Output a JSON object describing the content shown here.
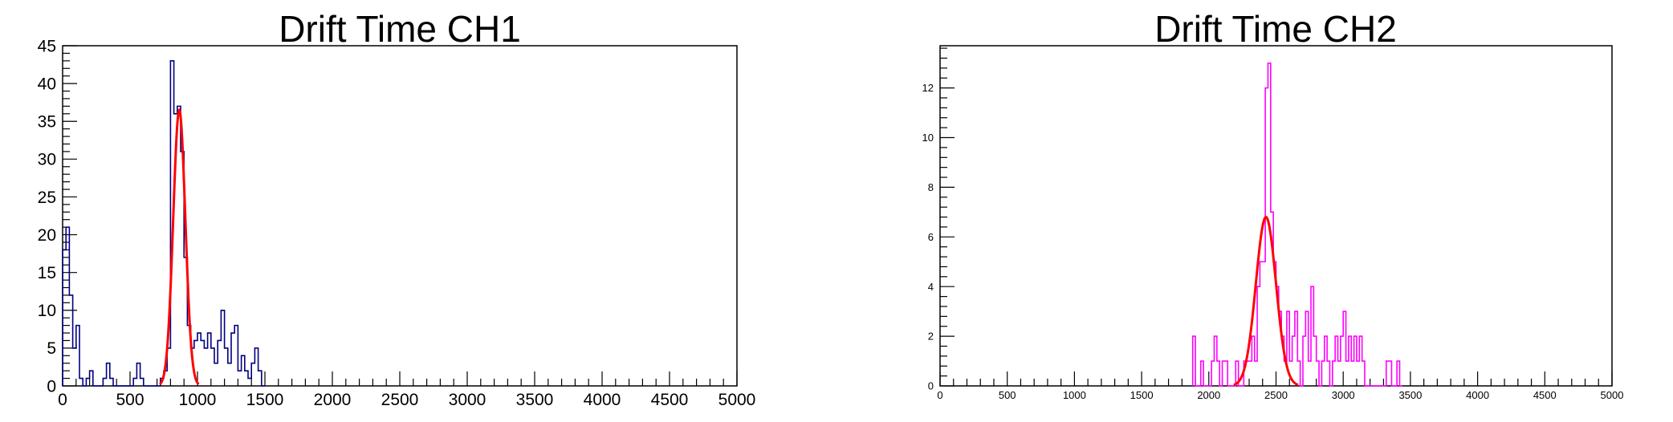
{
  "chart_data": [
    {
      "type": "bar",
      "title": "Drift Time CH1",
      "xlabel": "",
      "ylabel": "",
      "xlim": [
        0,
        5000
      ],
      "ylim": [
        0,
        45
      ],
      "x_ticks": [
        0,
        500,
        1000,
        1500,
        2000,
        2500,
        3000,
        3500,
        4000,
        4500,
        5000
      ],
      "y_ticks": [
        0,
        5,
        10,
        15,
        20,
        25,
        30,
        35,
        40,
        45
      ],
      "bin_width": 25,
      "histogram_color": "#000080",
      "fit_color": "#ff0000",
      "bins": [
        [
          0,
          18
        ],
        [
          25,
          21
        ],
        [
          50,
          12
        ],
        [
          75,
          5
        ],
        [
          100,
          8
        ],
        [
          125,
          1
        ],
        [
          150,
          0
        ],
        [
          175,
          1
        ],
        [
          200,
          2
        ],
        [
          225,
          0
        ],
        [
          250,
          0
        ],
        [
          275,
          0
        ],
        [
          300,
          1
        ],
        [
          325,
          3
        ],
        [
          350,
          1
        ],
        [
          375,
          0
        ],
        [
          400,
          0
        ],
        [
          425,
          0
        ],
        [
          450,
          0
        ],
        [
          475,
          0
        ],
        [
          500,
          0
        ],
        [
          525,
          1
        ],
        [
          550,
          3
        ],
        [
          575,
          1
        ],
        [
          600,
          0
        ],
        [
          625,
          0
        ],
        [
          650,
          0
        ],
        [
          675,
          0
        ],
        [
          700,
          0
        ],
        [
          725,
          1
        ],
        [
          750,
          2
        ],
        [
          775,
          5
        ],
        [
          800,
          43
        ],
        [
          825,
          36
        ],
        [
          850,
          37
        ],
        [
          875,
          31
        ],
        [
          900,
          17
        ],
        [
          925,
          8
        ],
        [
          950,
          5
        ],
        [
          975,
          6
        ],
        [
          1000,
          7
        ],
        [
          1025,
          6
        ],
        [
          1050,
          5
        ],
        [
          1075,
          7
        ],
        [
          1100,
          5
        ],
        [
          1125,
          3
        ],
        [
          1150,
          6
        ],
        [
          1175,
          10
        ],
        [
          1200,
          5
        ],
        [
          1225,
          3
        ],
        [
          1250,
          7
        ],
        [
          1275,
          8
        ],
        [
          1300,
          2
        ],
        [
          1325,
          4
        ],
        [
          1350,
          2
        ],
        [
          1375,
          1
        ],
        [
          1400,
          3
        ],
        [
          1425,
          5
        ],
        [
          1450,
          2
        ],
        [
          1475,
          0
        ]
      ],
      "fit": {
        "type": "gaus",
        "constant": 36.5,
        "mean": 865,
        "sigma": 45
      }
    },
    {
      "type": "bar",
      "title": "Drift Time CH2",
      "xlabel": "",
      "ylabel": "",
      "xlim": [
        0,
        5000
      ],
      "ylim": [
        0,
        13.7
      ],
      "x_ticks": [
        0,
        500,
        1000,
        1500,
        2000,
        2500,
        3000,
        3500,
        4000,
        4500,
        5000
      ],
      "y_ticks": [
        0,
        2,
        4,
        6,
        8,
        10,
        12
      ],
      "bin_width": 20,
      "histogram_color": "#ff00ff",
      "fit_color": "#ff0000",
      "bins": [
        [
          1880,
          2
        ],
        [
          1900,
          0
        ],
        [
          1920,
          0
        ],
        [
          1940,
          1
        ],
        [
          1960,
          0
        ],
        [
          1980,
          0
        ],
        [
          2000,
          0
        ],
        [
          2020,
          1
        ],
        [
          2040,
          2
        ],
        [
          2060,
          1
        ],
        [
          2080,
          0
        ],
        [
          2100,
          1
        ],
        [
          2120,
          1
        ],
        [
          2140,
          0
        ],
        [
          2160,
          0
        ],
        [
          2180,
          0
        ],
        [
          2200,
          1
        ],
        [
          2220,
          0
        ],
        [
          2240,
          0
        ],
        [
          2260,
          1
        ],
        [
          2280,
          1
        ],
        [
          2300,
          1
        ],
        [
          2320,
          2
        ],
        [
          2340,
          1
        ],
        [
          2360,
          4
        ],
        [
          2380,
          5
        ],
        [
          2400,
          5
        ],
        [
          2420,
          12
        ],
        [
          2440,
          13
        ],
        [
          2460,
          7
        ],
        [
          2480,
          5
        ],
        [
          2500,
          4
        ],
        [
          2520,
          3
        ],
        [
          2540,
          2
        ],
        [
          2560,
          1
        ],
        [
          2580,
          3
        ],
        [
          2600,
          1
        ],
        [
          2620,
          2
        ],
        [
          2640,
          3
        ],
        [
          2660,
          1
        ],
        [
          2680,
          0
        ],
        [
          2700,
          2
        ],
        [
          2720,
          3
        ],
        [
          2740,
          1
        ],
        [
          2760,
          4
        ],
        [
          2780,
          2
        ],
        [
          2800,
          1
        ],
        [
          2820,
          0
        ],
        [
          2840,
          1
        ],
        [
          2860,
          2
        ],
        [
          2880,
          1
        ],
        [
          2900,
          0
        ],
        [
          2920,
          1
        ],
        [
          2940,
          2
        ],
        [
          2960,
          1
        ],
        [
          2980,
          2
        ],
        [
          3000,
          3
        ],
        [
          3020,
          1
        ],
        [
          3040,
          2
        ],
        [
          3060,
          1
        ],
        [
          3080,
          2
        ],
        [
          3100,
          1
        ],
        [
          3120,
          2
        ],
        [
          3140,
          1
        ],
        [
          3160,
          0
        ],
        [
          3180,
          0
        ],
        [
          3200,
          0
        ],
        [
          3220,
          0
        ],
        [
          3240,
          0
        ],
        [
          3260,
          0
        ],
        [
          3280,
          0
        ],
        [
          3300,
          0
        ],
        [
          3320,
          1
        ],
        [
          3340,
          1
        ],
        [
          3360,
          0
        ],
        [
          3380,
          0
        ],
        [
          3400,
          1
        ],
        [
          3420,
          0
        ]
      ],
      "fit": {
        "type": "gaus",
        "constant": 6.8,
        "mean": 2425,
        "sigma": 75
      }
    }
  ]
}
